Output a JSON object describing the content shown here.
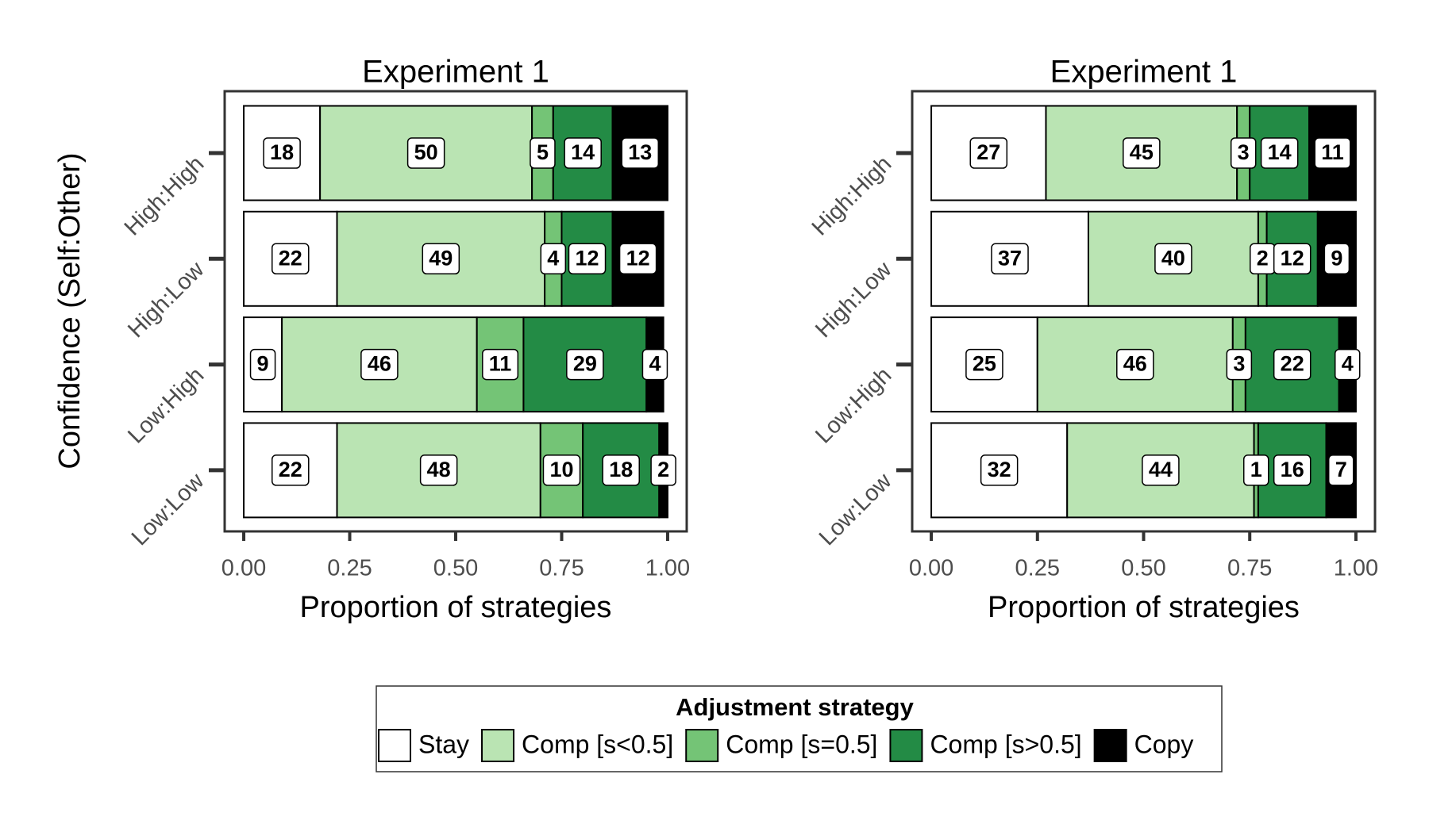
{
  "chart_data": [
    {
      "type": "stacked-bar",
      "title": "Experiment 1",
      "x_label": "Proportion of strategies",
      "y_label": "Confidence (Self:Other)",
      "legend_title": "Adjustment strategy",
      "categories": [
        "High:High",
        "High:Low",
        "Low:High",
        "Low:Low"
      ],
      "xlim": [
        -0.045,
        1.045
      ],
      "xticks": [
        {
          "value": 0,
          "label": "0.00"
        },
        {
          "value": 0.25,
          "label": "0.25"
        },
        {
          "value": 0.5,
          "label": "0.50"
        },
        {
          "value": 0.75,
          "label": "0.75"
        },
        {
          "value": 1,
          "label": "1.00"
        }
      ],
      "series": [
        {
          "name": "Stay",
          "color": "#ffffff",
          "values": [
            0.18,
            0.22,
            0.09,
            0.22
          ],
          "value_labels": [
            "18",
            "22",
            "9",
            "22"
          ]
        },
        {
          "name": "Comp [s<0.5]",
          "color": "#bae4b3",
          "values": [
            0.5,
            0.49,
            0.46,
            0.48
          ],
          "value_labels": [
            "50",
            "49",
            "46",
            "48"
          ]
        },
        {
          "name": "Comp [s=0.5]",
          "color": "#74c476",
          "values": [
            0.05,
            0.04,
            0.11,
            0.1
          ],
          "value_labels": [
            "5",
            "4",
            "11",
            "10"
          ]
        },
        {
          "name": "Comp [s>0.5]",
          "color": "#238b45",
          "values": [
            0.14,
            0.12,
            0.29,
            0.18
          ],
          "value_labels": [
            "14",
            "12",
            "29",
            "18"
          ]
        },
        {
          "name": "Copy",
          "color": "#000000",
          "values": [
            0.13,
            0.12,
            0.04,
            0.02
          ],
          "value_labels": [
            "13",
            "12",
            "4",
            "2"
          ]
        }
      ]
    },
    {
      "type": "stacked-bar",
      "title": "Experiment 1",
      "x_label": "Proportion of strategies",
      "categories": [
        "High:High",
        "High:Low",
        "Low:High",
        "Low:Low"
      ],
      "xlim": [
        -0.045,
        1.045
      ],
      "xticks": [
        {
          "value": 0,
          "label": "0.00"
        },
        {
          "value": 0.25,
          "label": "0.25"
        },
        {
          "value": 0.5,
          "label": "0.50"
        },
        {
          "value": 0.75,
          "label": "0.75"
        },
        {
          "value": 1,
          "label": "1.00"
        }
      ],
      "series": [
        {
          "color": "#ffffff",
          "values": [
            0.27,
            0.37,
            0.25,
            0.32
          ],
          "value_labels": [
            "27",
            "37",
            "25",
            "32"
          ]
        },
        {
          "color": "#bae4b3",
          "values": [
            0.45,
            0.4,
            0.46,
            0.44
          ],
          "value_labels": [
            "45",
            "40",
            "46",
            "44"
          ]
        },
        {
          "color": "#74c476",
          "values": [
            0.03,
            0.02,
            0.03,
            0.01
          ],
          "value_labels": [
            "3",
            "2",
            "3",
            "1"
          ]
        },
        {
          "color": "#238b45",
          "values": [
            0.14,
            0.12,
            0.22,
            0.16
          ],
          "value_labels": [
            "14",
            "12",
            "22",
            "16"
          ]
        },
        {
          "color": "#000000",
          "values": [
            0.11,
            0.09,
            0.04,
            0.07
          ],
          "value_labels": [
            "11",
            "9",
            "4",
            "7"
          ]
        }
      ]
    }
  ]
}
